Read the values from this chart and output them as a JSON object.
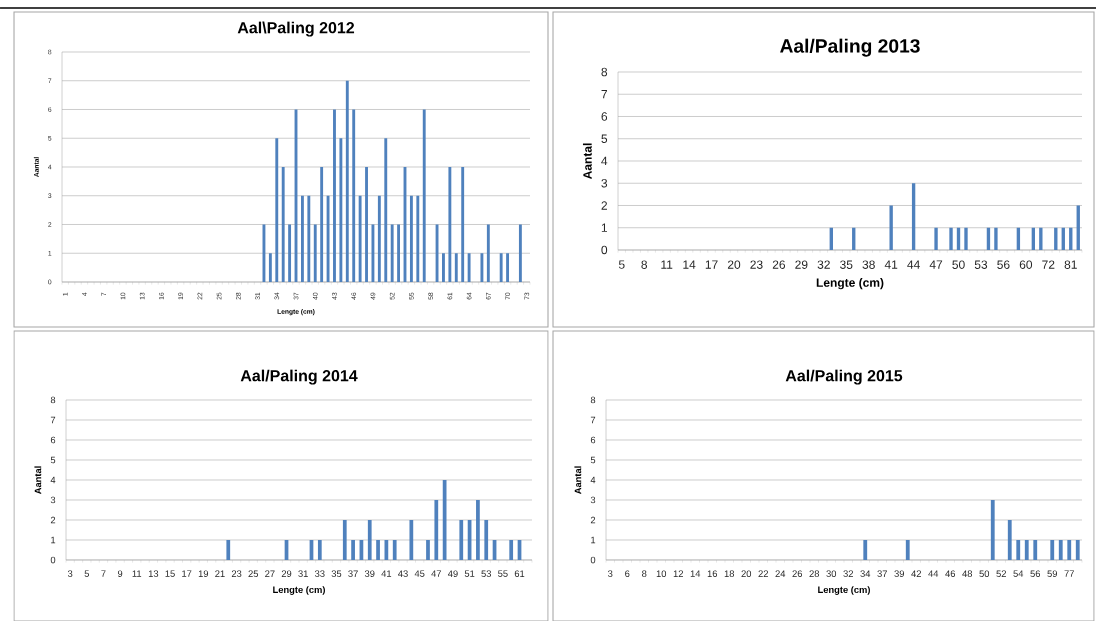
{
  "chart_data": [
    {
      "type": "bar",
      "title": "Aal\\Paling 2012",
      "xlabel": "Lengte (cm)",
      "ylabel": "Aantal",
      "color": "#4f81bd",
      "ylim": [
        0,
        8
      ],
      "yticks": [
        0,
        1,
        2,
        3,
        4,
        5,
        6,
        7,
        8
      ],
      "grid": "y",
      "categories": [
        "1",
        null,
        null,
        "4",
        null,
        null,
        "7",
        null,
        null,
        "10",
        null,
        null,
        "13",
        null,
        null,
        "16",
        null,
        null,
        "19",
        null,
        null,
        "22",
        null,
        null,
        "25",
        null,
        null,
        "28",
        null,
        null,
        "31",
        null,
        null,
        "34",
        null,
        null,
        "37",
        null,
        null,
        "40",
        null,
        null,
        "43",
        null,
        null,
        "46",
        null,
        null,
        "49",
        null,
        null,
        "52",
        null,
        null,
        "55",
        null,
        null,
        "58",
        null,
        null,
        "61",
        null,
        null,
        "64",
        null,
        null,
        "67",
        null,
        null,
        "70",
        null,
        null,
        "73"
      ],
      "values": [
        0,
        0,
        0,
        0,
        0,
        0,
        0,
        0,
        0,
        0,
        0,
        0,
        0,
        0,
        0,
        0,
        0,
        0,
        0,
        0,
        0,
        0,
        0,
        0,
        0,
        0,
        0,
        0,
        0,
        0,
        0,
        2,
        1,
        5,
        4,
        2,
        6,
        3,
        3,
        2,
        4,
        3,
        6,
        5,
        7,
        6,
        3,
        4,
        2,
        3,
        5,
        2,
        2,
        4,
        3,
        3,
        6,
        0,
        2,
        1,
        4,
        1,
        4,
        1,
        0,
        1,
        2,
        0,
        1,
        1,
        0,
        2,
        0
      ]
    },
    {
      "type": "bar",
      "title": "Aal/Paling 2013",
      "xlabel": "Lengte (cm)",
      "ylabel": "Aantal",
      "color": "#4f81bd",
      "ylim": [
        0,
        8
      ],
      "yticks": [
        0,
        1,
        2,
        3,
        4,
        5,
        6,
        7,
        8
      ],
      "grid": "y",
      "categories": [
        "5",
        null,
        null,
        "8",
        null,
        null,
        "11",
        null,
        null,
        "14",
        null,
        null,
        "17",
        null,
        null,
        "20",
        null,
        null,
        "23",
        null,
        null,
        "26",
        null,
        null,
        "29",
        null,
        null,
        "32",
        null,
        null,
        "35",
        null,
        null,
        "38",
        null,
        null,
        "41",
        null,
        null,
        "44",
        null,
        null,
        "47",
        null,
        null,
        "50",
        null,
        null,
        "53",
        null,
        null,
        "56",
        null,
        null,
        "60",
        null,
        null,
        "72",
        null,
        null,
        "81",
        null
      ],
      "values": [
        0,
        0,
        0,
        0,
        0,
        0,
        0,
        0,
        0,
        0,
        0,
        0,
        0,
        0,
        0,
        0,
        0,
        0,
        0,
        0,
        0,
        0,
        0,
        0,
        0,
        0,
        0,
        0,
        1,
        0,
        0,
        1,
        0,
        0,
        0,
        0,
        2,
        0,
        0,
        3,
        0,
        0,
        1,
        0,
        1,
        1,
        1,
        0,
        0,
        1,
        1,
        0,
        0,
        1,
        0,
        1,
        1,
        0,
        1,
        1,
        1,
        2
      ]
    },
    {
      "type": "bar",
      "title": "Aal/Paling 2014",
      "xlabel": "Lengte (cm)",
      "ylabel": "Aantal",
      "color": "#4f81bd",
      "ylim": [
        0,
        8
      ],
      "yticks": [
        0,
        1,
        2,
        3,
        4,
        5,
        6,
        7,
        8
      ],
      "grid": "y",
      "categories": [
        "3",
        null,
        "5",
        null,
        "7",
        null,
        "9",
        null,
        "11",
        null,
        "13",
        null,
        "15",
        null,
        "17",
        null,
        "19",
        null,
        "21",
        null,
        "23",
        null,
        "25",
        null,
        "27",
        null,
        "29",
        null,
        "31",
        null,
        "33",
        null,
        "35",
        null,
        "37",
        null,
        "39",
        null,
        "41",
        null,
        "43",
        null,
        "45",
        null,
        "47",
        null,
        "49",
        null,
        "51",
        null,
        "53",
        null,
        "55",
        null,
        "61",
        null
      ],
      "values": [
        0,
        0,
        0,
        0,
        0,
        0,
        0,
        0,
        0,
        0,
        0,
        0,
        0,
        0,
        0,
        0,
        0,
        0,
        0,
        1,
        0,
        0,
        0,
        0,
        0,
        0,
        1,
        0,
        0,
        1,
        1,
        0,
        0,
        2,
        1,
        1,
        2,
        1,
        1,
        1,
        0,
        2,
        0,
        1,
        3,
        4,
        0,
        2,
        2,
        3,
        2,
        1,
        0,
        1,
        1,
        0
      ]
    },
    {
      "type": "bar",
      "title": "Aal/Paling 2015",
      "xlabel": "Lengte (cm)",
      "ylabel": "Aantal",
      "color": "#4f81bd",
      "ylim": [
        0,
        8
      ],
      "yticks": [
        0,
        1,
        2,
        3,
        4,
        5,
        6,
        7,
        8
      ],
      "grid": "y",
      "categories": [
        "3",
        null,
        "6",
        null,
        "8",
        null,
        "10",
        null,
        "12",
        null,
        "14",
        null,
        "16",
        null,
        "18",
        null,
        "20",
        null,
        "22",
        null,
        "24",
        null,
        "26",
        null,
        "28",
        null,
        "30",
        null,
        "32",
        null,
        "34",
        null,
        "37",
        null,
        "39",
        null,
        "42",
        null,
        "44",
        null,
        "46",
        null,
        "48",
        null,
        "50",
        null,
        "52",
        null,
        "54",
        null,
        "56",
        null,
        "59",
        null,
        "77",
        null
      ],
      "values": [
        0,
        0,
        0,
        0,
        0,
        0,
        0,
        0,
        0,
        0,
        0,
        0,
        0,
        0,
        0,
        0,
        0,
        0,
        0,
        0,
        0,
        0,
        0,
        0,
        0,
        0,
        0,
        0,
        0,
        0,
        1,
        0,
        0,
        0,
        0,
        1,
        0,
        0,
        0,
        0,
        0,
        0,
        0,
        0,
        0,
        3,
        0,
        2,
        1,
        1,
        1,
        0,
        1,
        1,
        1,
        1
      ]
    }
  ]
}
